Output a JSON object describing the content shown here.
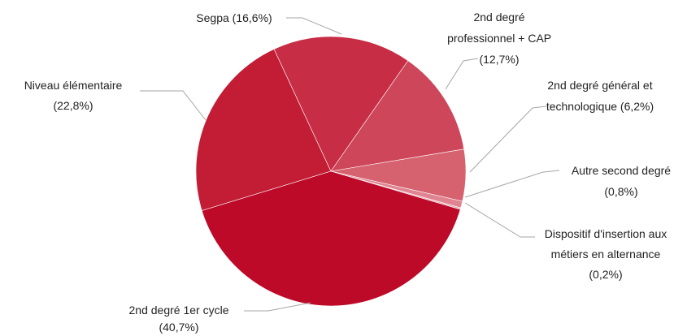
{
  "chart_data": {
    "type": "pie",
    "categories": [
      "Niveau élémentaire",
      "Segpa",
      "2nd degré professionnel + CAP",
      "2nd degré général et technologique",
      "Autre second degré",
      "Dispositif d'insertion aux métiers en alternance",
      "2nd degré 1er cycle"
    ],
    "values": [
      22.8,
      16.6,
      12.7,
      6.2,
      0.8,
      0.2,
      40.7
    ],
    "value_labels": [
      "(22,8%)",
      "(16,6%)",
      "(12,7%)",
      "(6,2%)",
      "(0,8%)",
      "(0,2%)",
      "(40,7%)"
    ],
    "colors": [
      "#c21d35",
      "#c72e45",
      "#cd4659",
      "#d6616f",
      "#df8490",
      "#e9aab3",
      "#bd0a29"
    ]
  }
}
